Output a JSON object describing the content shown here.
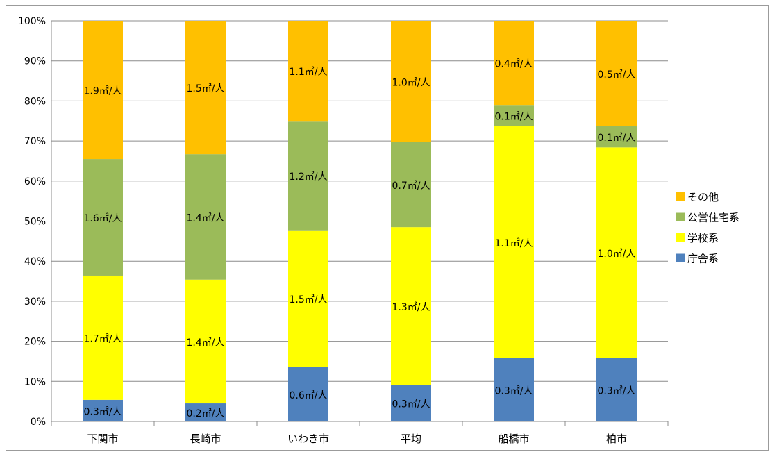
{
  "chart_data": {
    "type": "bar",
    "stacked": true,
    "percent_stacked": true,
    "categories": [
      "下関市",
      "長崎市",
      "いわき市",
      "平均",
      "船橋市",
      "柏市"
    ],
    "series": [
      {
        "name": "庁舎系",
        "color": "#4f81bd",
        "values": [
          5.4,
          4.5,
          13.6,
          9.1,
          15.8,
          15.8
        ],
        "labels": [
          "0.3㎡/人",
          "0.2㎡/人",
          "0.6㎡/人",
          "0.3㎡/人",
          "0.3㎡/人",
          "0.3㎡/人"
        ]
      },
      {
        "name": "学校系",
        "color": "#ffff00",
        "values": [
          31.0,
          30.9,
          34.1,
          39.4,
          57.9,
          52.6
        ],
        "labels": [
          "1.7㎡/人",
          "1.4㎡/人",
          "1.5㎡/人",
          "1.3㎡/人",
          "1.1㎡/人",
          "1.0㎡/人"
        ]
      },
      {
        "name": "公営住宅系",
        "color": "#9bbb59",
        "values": [
          29.1,
          31.3,
          27.3,
          21.2,
          5.3,
          5.3
        ],
        "labels": [
          "1.6㎡/人",
          "1.4㎡/人",
          "1.2㎡/人",
          "0.7㎡/人",
          "0.1㎡/人",
          "0.1㎡/人"
        ]
      },
      {
        "name": "その他",
        "color": "#ffc000",
        "values": [
          34.5,
          33.3,
          25.0,
          30.3,
          21.0,
          26.3
        ],
        "labels": [
          "1.9㎡/人",
          "1.5㎡/人",
          "1.1㎡/人",
          "1.0㎡/人",
          "0.4㎡/人",
          "0.5㎡/人"
        ]
      }
    ],
    "ylim": [
      0,
      100
    ],
    "yticks": [
      "0%",
      "10%",
      "20%",
      "30%",
      "40%",
      "50%",
      "60%",
      "70%",
      "80%",
      "90%",
      "100%"
    ],
    "legend_order": [
      "その他",
      "公営住宅系",
      "学校系",
      "庁舎系"
    ],
    "legend_position": "right",
    "grid": true,
    "title": "",
    "xlabel": "",
    "ylabel": ""
  }
}
